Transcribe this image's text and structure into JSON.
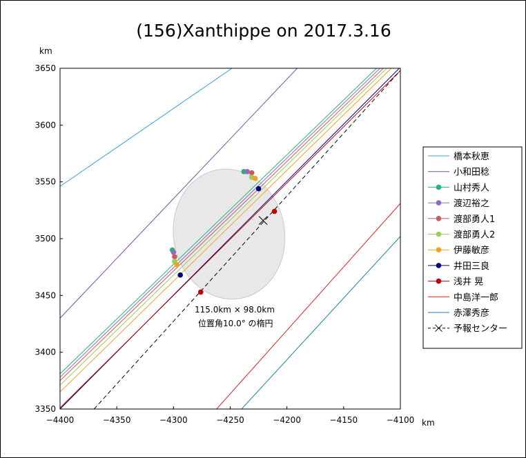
{
  "chart_data": {
    "type": "line",
    "title": "(156)Xanthippe on 2017.3.16",
    "xunit": "km",
    "yunit": "km",
    "xlim": [
      -4400,
      -4100
    ],
    "ylim": [
      3350,
      3650
    ],
    "xticks": [
      -4400,
      -4350,
      -4300,
      -4250,
      -4200,
      -4150,
      -4100
    ],
    "xtick_labels": [
      "−4400",
      "−4350",
      "−4300",
      "−4250",
      "−4200",
      "−4150",
      "−4100"
    ],
    "yticks": [
      3350,
      3400,
      3450,
      3500,
      3550,
      3600,
      3650
    ],
    "ytick_labels": [
      "3350",
      "3400",
      "3450",
      "3500",
      "3550",
      "3600",
      "3650"
    ],
    "legend_position": "right",
    "ellipse": {
      "center": [
        -4251,
        3504
      ],
      "size_km": [
        115.0,
        98.0
      ],
      "position_angle_deg": 10.0,
      "fill": "#e8e8e8",
      "label_line1": "115.0km × 98.0km",
      "label_line2": "位置角10.0° の楕円",
      "label_at": [
        -4277,
        3438
      ]
    },
    "series": [
      {
        "name": "橋本秋恵",
        "color": "#3aa0d8",
        "line": [
          [
            -4400,
            3546
          ],
          [
            -4247,
            3651
          ]
        ],
        "points": []
      },
      {
        "name": "小和田稔",
        "color": "#7b4bb0",
        "line": [
          [
            -4400,
            3430
          ],
          [
            -4190,
            3651
          ]
        ],
        "points": []
      },
      {
        "name": "山村秀人",
        "color": "#22b573",
        "line": [
          [
            -4400,
            3381
          ],
          [
            -4120,
            3651
          ]
        ],
        "points": [
          [
            -4301,
            3490
          ],
          [
            -4238,
            3559
          ]
        ]
      },
      {
        "name": "渡辺裕之",
        "color": "#8e6bbf",
        "line": [
          [
            -4400,
            3378
          ],
          [
            -4117,
            3651
          ]
        ],
        "points": [
          [
            -4300,
            3488
          ],
          [
            -4235,
            3559
          ]
        ]
      },
      {
        "name": "渡部勇人1",
        "color": "#cc5a5a",
        "line": [
          [
            -4400,
            3375
          ],
          [
            -4114,
            3651
          ]
        ],
        "points": [
          [
            -4299,
            3484
          ],
          [
            -4231,
            3558
          ]
        ]
      },
      {
        "name": "渡部勇人2",
        "color": "#9acd5a",
        "line": [
          [
            -4400,
            3371
          ],
          [
            -4111,
            3651
          ]
        ],
        "points": [
          [
            -4299,
            3480
          ],
          [
            -4231,
            3554
          ]
        ]
      },
      {
        "name": "伊藤敏彦",
        "color": "#f5a020",
        "line": [
          [
            -4400,
            3365
          ],
          [
            -4107,
            3651
          ]
        ],
        "points": [
          [
            -4297,
            3477
          ],
          [
            -4228,
            3553
          ]
        ]
      },
      {
        "name": "井田三良",
        "color": "#000080",
        "line": [
          [
            -4400,
            3350
          ],
          [
            -4100,
            3651
          ]
        ],
        "points": [
          [
            -4294,
            3468
          ],
          [
            -4225,
            3544
          ]
        ]
      },
      {
        "name": "浅井 晃",
        "color": "#c00000",
        "line": [
          [
            -4400,
            3351
          ],
          [
            -4100,
            3648
          ]
        ],
        "points": [
          [
            -4276,
            3453
          ],
          [
            -4211,
            3524
          ]
        ]
      },
      {
        "name": "中島洋一郎",
        "color": "#e02020",
        "line": [
          [
            -4262,
            3350
          ],
          [
            -4100,
            3531
          ]
        ],
        "points": []
      },
      {
        "name": "赤澤秀彦",
        "color": "#1a7fb0",
        "line": [
          [
            -4240,
            3350
          ],
          [
            -4100,
            3502
          ]
        ],
        "points": []
      }
    ],
    "center_line": {
      "name": "予報センター",
      "color": "#000000",
      "dash": true,
      "line": [
        [
          -4370,
          3350
        ],
        [
          -4100,
          3648
        ]
      ],
      "marker": [
        -4221,
        3516
      ]
    },
    "grid": false
  }
}
